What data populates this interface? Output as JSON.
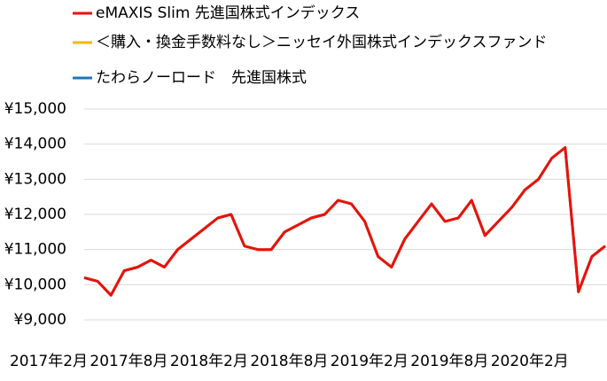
{
  "chart_data": {
    "type": "line",
    "categories": [
      "2017年2月",
      null,
      null,
      null,
      null,
      null,
      "2017年8月",
      null,
      null,
      null,
      null,
      null,
      "2018年2月",
      null,
      null,
      null,
      null,
      null,
      "2018年8月",
      null,
      null,
      null,
      null,
      null,
      "2019年2月",
      null,
      null,
      null,
      null,
      null,
      "2019年8月",
      null,
      null,
      null,
      null,
      null,
      "2020年2月",
      null,
      null,
      null
    ],
    "series": [
      {
        "name": "eMAXIS Slim 先進国株式インデックス",
        "color": "#e8110f",
        "values": [
          10200,
          10100,
          9700,
          10400,
          10500,
          10700,
          10500,
          11000,
          11300,
          11600,
          11900,
          12000,
          11100,
          11000,
          11000,
          11500,
          11700,
          11900,
          12000,
          12400,
          12300,
          11800,
          10800,
          10500,
          11300,
          11800,
          12300,
          11800,
          11900,
          12400,
          11400,
          11800,
          12200,
          12700,
          13000,
          13600,
          13900,
          9800,
          10800,
          11100
        ]
      },
      {
        "name": "＜購入・換金手数料なし＞ニッセイ外国株式インデックスファンド",
        "color": "#f5b800",
        "values": [
          10200,
          10100,
          9700,
          10400,
          10500,
          10700,
          10500,
          11000,
          11300,
          11600,
          11900,
          12000,
          11100,
          11000,
          11000,
          11500,
          11700,
          11900,
          12000,
          12400,
          12300,
          11800,
          10800,
          10500,
          11300,
          11800,
          12300,
          11800,
          11900,
          12400,
          11400,
          11800,
          12200,
          12700,
          13000,
          13600,
          13900,
          9800,
          10800,
          11100
        ]
      },
      {
        "name": "たわらノーロード　先進国株式",
        "color": "#1f77b4",
        "values": [
          10200,
          10100,
          9700,
          10400,
          10500,
          10700,
          10500,
          11000,
          11300,
          11600,
          11900,
          12000,
          11100,
          11000,
          11000,
          11500,
          11700,
          11900,
          12000,
          12400,
          12300,
          11800,
          10800,
          10500,
          11300,
          11800,
          12300,
          11800,
          11900,
          12400,
          11400,
          11800,
          12200,
          12700,
          13000,
          13600,
          13900,
          9800,
          10800,
          11100
        ]
      }
    ],
    "ylim": [
      9000,
      15000
    ],
    "yticks": [
      {
        "value": 9000,
        "label": "¥9,000"
      },
      {
        "value": 10000,
        "label": "¥10,000"
      },
      {
        "value": 11000,
        "label": "¥11,000"
      },
      {
        "value": 12000,
        "label": "¥12,000"
      },
      {
        "value": 13000,
        "label": "¥13,000"
      },
      {
        "value": 14000,
        "label": "¥14,000"
      },
      {
        "value": 15000,
        "label": "¥15,000"
      }
    ],
    "grid": true
  }
}
